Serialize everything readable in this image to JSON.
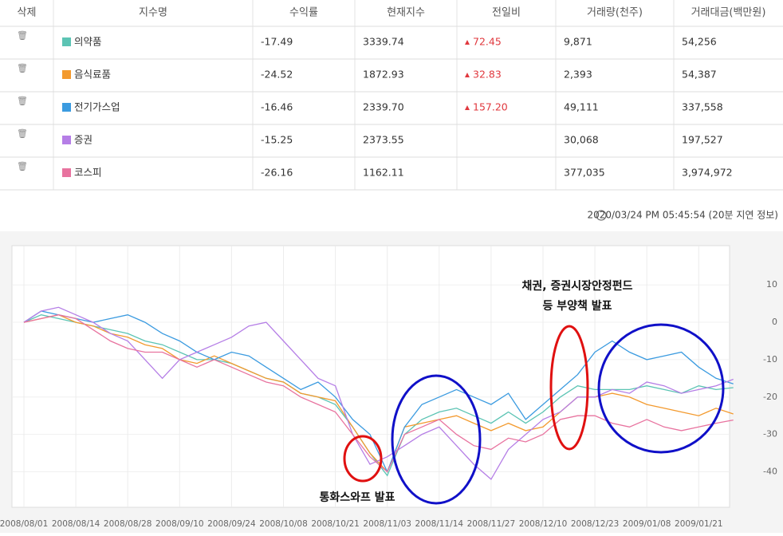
{
  "table": {
    "headers": [
      "삭제",
      "지수명",
      "수익률",
      "현재지수",
      "전일비",
      "거래량(천주)",
      "거래대금(백만원)"
    ],
    "rows": [
      [
        "의약품",
        "-17.49",
        "3339.74",
        "72.45",
        "9,871",
        "54,256"
      ],
      [
        "음식료품",
        "-24.52",
        "1872.93",
        "32.83",
        "2,393",
        "54,387"
      ],
      [
        "전기가스업",
        "-16.46",
        "2339.70",
        "157.20",
        "49,111",
        "337,558"
      ],
      [
        "증권",
        "-15.25",
        "2373.55",
        "",
        "30,068",
        "197,527"
      ],
      [
        "코스피",
        "-26.16",
        "1162.11",
        "",
        "377,035",
        "3,974,972"
      ]
    ]
  },
  "timestamp": "2020/03/24 PM 05:45:54 (20분 지연 정보)",
  "chart_data": {
    "type": "line",
    "annotations": [
      "채권, 증권시장안정펀드",
      "등 부양책 발표",
      "통화스와프 발표"
    ],
    "categories": [
      "2008/08/01",
      null,
      null,
      "2008/08/14",
      null,
      null,
      "2008/08/28",
      null,
      null,
      "2008/09/10",
      null,
      null,
      "2008/09/24",
      null,
      null,
      "2008/10/08",
      null,
      null,
      "2008/10/21",
      null,
      null,
      "2008/11/03",
      null,
      null,
      "2008/11/14",
      null,
      null,
      "2008/11/27",
      null,
      null,
      "2008/12/10",
      null,
      null,
      "2008/12/23",
      null,
      null,
      "2009/01/08",
      null,
      null,
      "2009/01/21",
      null,
      null
    ],
    "series": [
      {
        "name": "의약품",
        "color": "#5cc4b4",
        "values": [
          0,
          2,
          1,
          0,
          -1,
          -2,
          -3,
          -5,
          -6,
          -8,
          -10,
          -10,
          -11,
          -13,
          -15,
          -16,
          -19,
          -20,
          -22,
          -28,
          -35,
          -41,
          -30,
          -26,
          -24,
          -23,
          -25,
          -27,
          -24,
          -27,
          -24,
          -20,
          -17,
          -18,
          -18,
          -18,
          -17,
          -18,
          -19,
          -17,
          -18,
          -17.49
        ]
      },
      {
        "name": "음식료품",
        "color": "#f39a2e",
        "values": [
          0,
          1,
          2,
          0,
          -1,
          -3,
          -4,
          -6,
          -7,
          -10,
          -11,
          -9,
          -11,
          -13,
          -15,
          -16,
          -19,
          -20,
          -21,
          -28,
          -35,
          -40,
          -28,
          -27,
          -26,
          -25,
          -27,
          -29,
          -27,
          -29,
          -28,
          -24,
          -20,
          -20,
          -19,
          -20,
          -22,
          -23,
          -24,
          -25,
          -23,
          -24.52
        ]
      },
      {
        "name": "전기가스업",
        "color": "#3b9be0",
        "values": [
          0,
          3,
          2,
          1,
          0,
          1,
          2,
          0,
          -3,
          -5,
          -8,
          -10,
          -8,
          -9,
          -12,
          -15,
          -18,
          -16,
          -20,
          -26,
          -30,
          -40,
          -28,
          -22,
          -20,
          -18,
          -20,
          -22,
          -19,
          -26,
          -22,
          -18,
          -14,
          -8,
          -5,
          -8,
          -10,
          -9,
          -8,
          -12,
          -15,
          -16.46
        ]
      },
      {
        "name": "증권",
        "color": "#b57ee6",
        "values": [
          0,
          3,
          4,
          2,
          0,
          -3,
          -5,
          -10,
          -15,
          -10,
          -8,
          -6,
          -4,
          -1,
          0,
          -5,
          -10,
          -15,
          -17,
          -30,
          -38,
          -36,
          -33,
          -30,
          -28,
          -33,
          -38,
          -42,
          -34,
          -30,
          -26,
          -24,
          -20,
          -20,
          -18,
          -19,
          -16,
          -17,
          -19,
          -18,
          -17,
          -15.25
        ]
      },
      {
        "name": "코스피",
        "color": "#e8739f",
        "values": [
          0,
          1,
          2,
          1,
          -2,
          -5,
          -7,
          -8,
          -8,
          -10,
          -12,
          -10,
          -12,
          -14,
          -16,
          -17,
          -20,
          -22,
          -24,
          -30,
          -36,
          -40,
          -30,
          -28,
          -26,
          -30,
          -33,
          -34,
          -31,
          -32,
          -30,
          -26,
          -25,
          -25,
          -27,
          -28,
          -26,
          -28,
          -29,
          -28,
          -27,
          -26.16
        ]
      }
    ],
    "ylim": [
      -49.5,
      20.5
    ],
    "yticks": [
      10,
      0,
      -10,
      -20,
      -30,
      -40
    ],
    "grid": true
  }
}
